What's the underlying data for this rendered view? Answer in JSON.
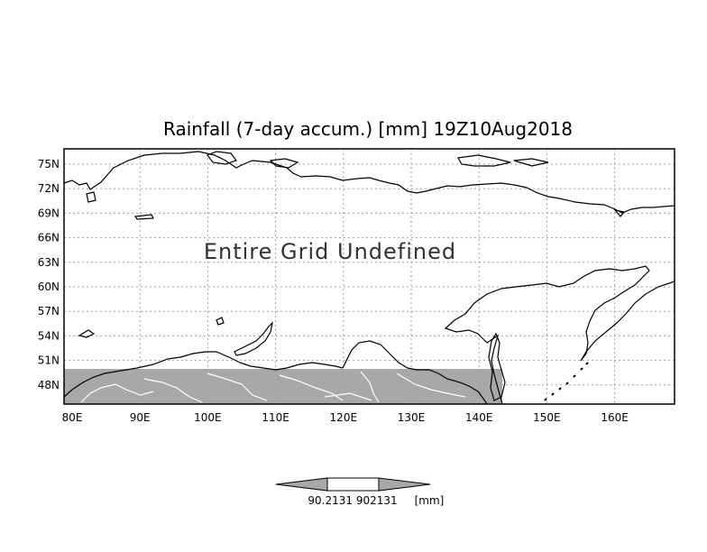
{
  "map": {
    "title": "Rainfall (7-day accum.) [mm] 19Z10Aug2018",
    "overlay_text": "Entire Grid Undefined",
    "lat_ticks": [
      "75N",
      "72N",
      "69N",
      "66N",
      "63N",
      "60N",
      "57N",
      "54N",
      "51N",
      "48N"
    ],
    "lon_ticks": [
      "80E",
      "90E",
      "100E",
      "110E",
      "120E",
      "130E",
      "140E",
      "150E",
      "160E"
    ],
    "colorbar": {
      "value_label": "90.2131 902131",
      "unit_label": "[mm]"
    },
    "colors": {
      "frame": "#000000",
      "grid": "#a0a0a0",
      "undefined_band": "#a8a8a8",
      "coast": "#000000",
      "rivers": "#ffffff"
    }
  }
}
